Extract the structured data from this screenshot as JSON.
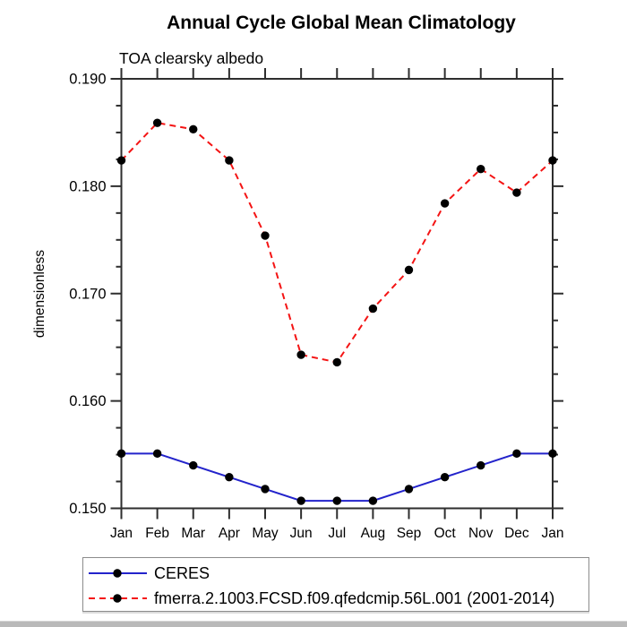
{
  "chart_data": {
    "type": "line",
    "title": "Annual Cycle Global Mean Climatology",
    "subtitle": "TOA clearsky albedo",
    "ylabel": "dimensionless",
    "xlabel": "",
    "x": [
      "Jan",
      "Feb",
      "Mar",
      "Apr",
      "May",
      "Jun",
      "Jul",
      "Aug",
      "Sep",
      "Oct",
      "Nov",
      "Dec",
      "Jan"
    ],
    "ylim": [
      0.15,
      0.19
    ],
    "yticks": {
      "values": [
        0.15,
        0.16,
        0.17,
        0.18,
        0.19
      ],
      "labels": [
        "0.150",
        "0.160",
        "0.170",
        "0.180",
        "0.190"
      ],
      "minor_step": 0.0025
    },
    "grid": false,
    "legend_position": "bottom-left",
    "frame_color": "#2e2e2e",
    "marker_color": "#000000",
    "series": [
      {
        "name": "CERES",
        "color": "#2323cb",
        "style": "solid",
        "marker": "filled-circle",
        "values": [
          0.1551,
          0.1551,
          0.154,
          0.1529,
          0.1518,
          0.1507,
          0.1507,
          0.1507,
          0.1518,
          0.1529,
          0.154,
          0.1551,
          0.1551
        ]
      },
      {
        "name": "fmerra.2.1003.FCSD.f09.qfedcmip.56L.001 (2001-2014)",
        "color": "#f41414",
        "style": "dashed",
        "marker": "filled-circle",
        "values": [
          0.1824,
          0.1859,
          0.1853,
          0.1824,
          0.1754,
          0.1643,
          0.1636,
          0.1686,
          0.1722,
          0.1784,
          0.1816,
          0.1794,
          0.1824
        ]
      }
    ]
  }
}
